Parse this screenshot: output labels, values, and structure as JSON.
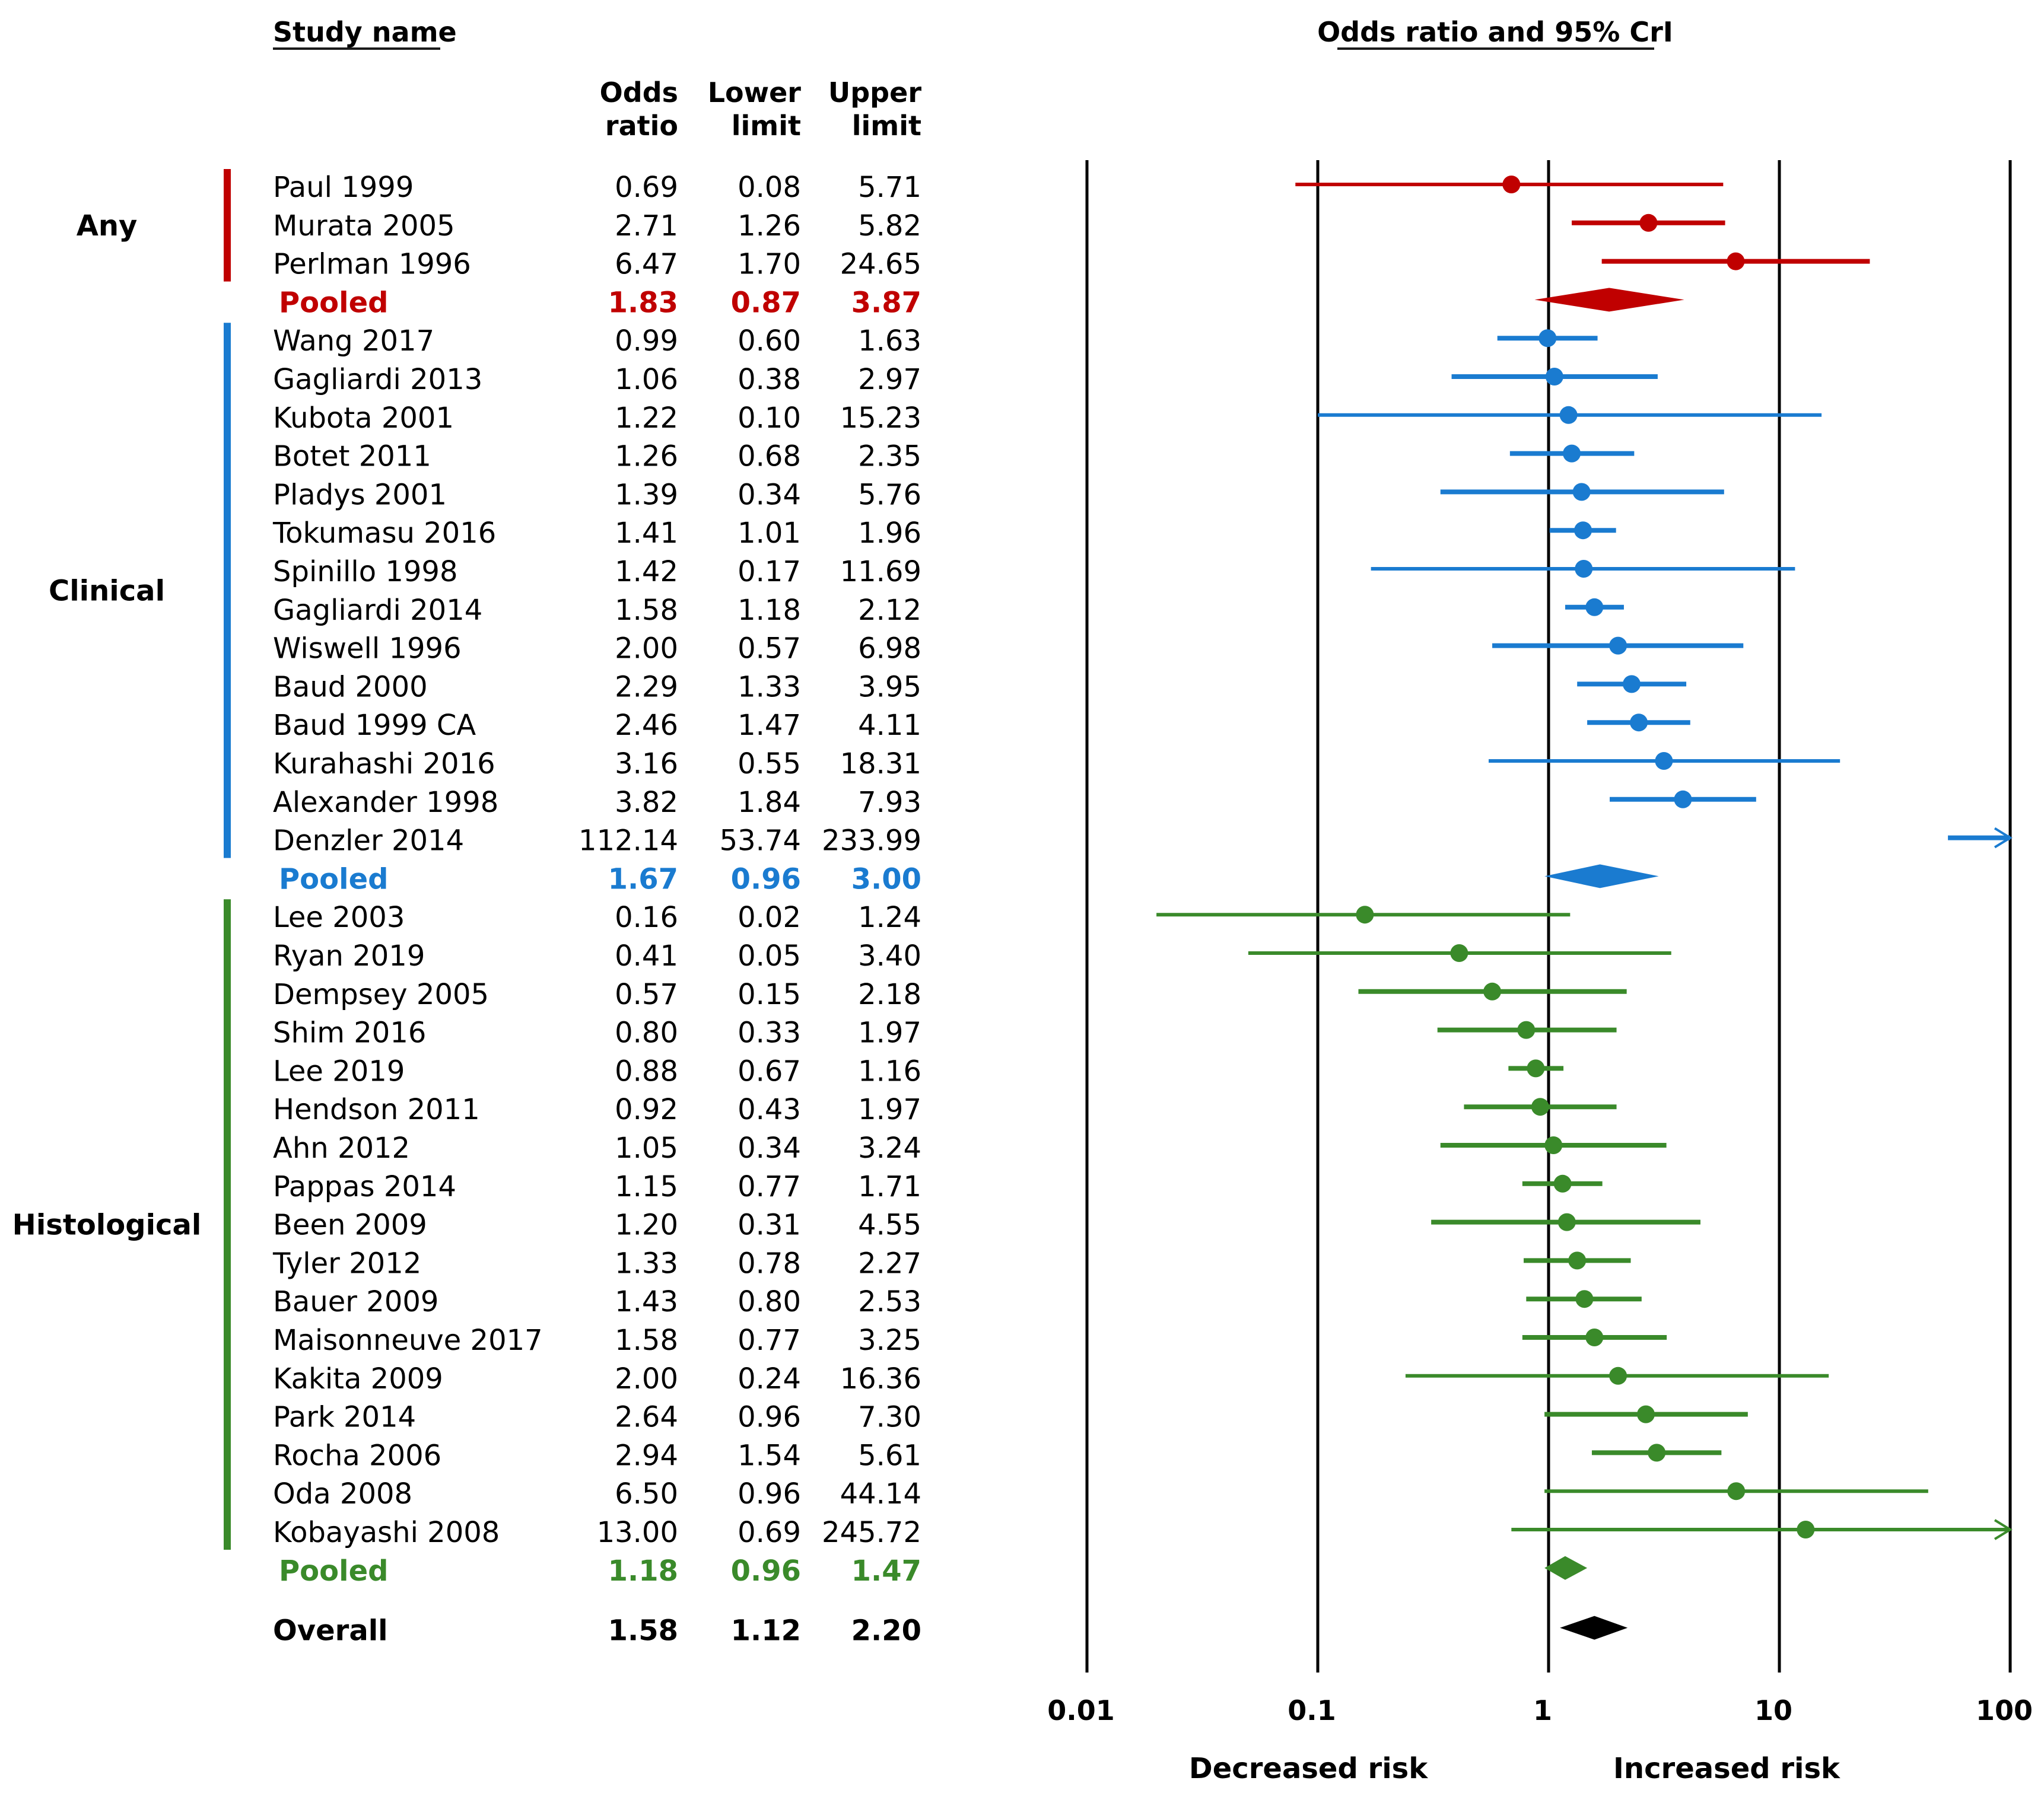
{
  "chart_data": {
    "type": "forest",
    "headers": {
      "study_name": "Study name",
      "odds_ratio_line1": "Odds",
      "odds_ratio_line2": "ratio",
      "lower_line1": "Lower",
      "lower_line2": "limit",
      "upper_line1": "Upper",
      "upper_line2": "limit",
      "plot_title": "Odds ratio and 95% CrI"
    },
    "x_axis": {
      "scale": "log",
      "range": [
        0.01,
        100
      ],
      "ticks": [
        0.01,
        0.1,
        1,
        10,
        100
      ],
      "tick_labels": [
        "0.01",
        "0.1",
        "1",
        "10",
        "100"
      ],
      "left_label": "Decreased risk",
      "right_label": "Increased risk"
    },
    "groups": [
      {
        "name": "Any",
        "color": "#c00000",
        "studies": [
          {
            "name": "Paul 1999",
            "or": "0.69",
            "lower": "0.08",
            "upper": "5.71"
          },
          {
            "name": "Murata 2005",
            "or": "2.71",
            "lower": "1.26",
            "upper": "5.82"
          },
          {
            "name": "Perlman 1996",
            "or": "6.47",
            "lower": "1.70",
            "upper": "24.65"
          }
        ],
        "pooled": {
          "name": "Pooled",
          "or": "1.83",
          "lower": "0.87",
          "upper": "3.87"
        }
      },
      {
        "name": "Clinical",
        "color": "#1a7bd0",
        "studies": [
          {
            "name": "Wang 2017",
            "or": "0.99",
            "lower": "0.60",
            "upper": "1.63"
          },
          {
            "name": "Gagliardi 2013",
            "or": "1.06",
            "lower": "0.38",
            "upper": "2.97"
          },
          {
            "name": "Kubota 2001",
            "or": "1.22",
            "lower": "0.10",
            "upper": "15.23"
          },
          {
            "name": "Botet 2011",
            "or": "1.26",
            "lower": "0.68",
            "upper": "2.35"
          },
          {
            "name": "Pladys 2001",
            "or": "1.39",
            "lower": "0.34",
            "upper": "5.76"
          },
          {
            "name": "Tokumasu 2016",
            "or": "1.41",
            "lower": "1.01",
            "upper": "1.96"
          },
          {
            "name": "Spinillo 1998",
            "or": "1.42",
            "lower": "0.17",
            "upper": "11.69"
          },
          {
            "name": "Gagliardi 2014",
            "or": "1.58",
            "lower": "1.18",
            "upper": "2.12"
          },
          {
            "name": "Wiswell 1996",
            "or": "2.00",
            "lower": "0.57",
            "upper": "6.98"
          },
          {
            "name": "Baud 2000",
            "or": "2.29",
            "lower": "1.33",
            "upper": "3.95"
          },
          {
            "name": "Baud 1999 CA",
            "or": "2.46",
            "lower": "1.47",
            "upper": "4.11"
          },
          {
            "name": "Kurahashi 2016",
            "or": "3.16",
            "lower": "0.55",
            "upper": "18.31"
          },
          {
            "name": "Alexander 1998",
            "or": "3.82",
            "lower": "1.84",
            "upper": "7.93"
          },
          {
            "name": "Denzler 2014",
            "or": "112.14",
            "lower": "53.74",
            "upper": "233.99"
          }
        ],
        "pooled": {
          "name": "Pooled",
          "or": "1.67",
          "lower": "0.96",
          "upper": "3.00"
        }
      },
      {
        "name": "Histological",
        "color": "#3a8a2a",
        "studies": [
          {
            "name": "Lee 2003",
            "or": "0.16",
            "lower": "0.02",
            "upper": "1.24"
          },
          {
            "name": "Ryan 2019",
            "or": "0.41",
            "lower": "0.05",
            "upper": "3.40"
          },
          {
            "name": "Dempsey 2005",
            "or": "0.57",
            "lower": "0.15",
            "upper": "2.18"
          },
          {
            "name": "Shim 2016",
            "or": "0.80",
            "lower": "0.33",
            "upper": "1.97"
          },
          {
            "name": "Lee 2019",
            "or": "0.88",
            "lower": "0.67",
            "upper": "1.16"
          },
          {
            "name": "Hendson 2011",
            "or": "0.92",
            "lower": "0.43",
            "upper": "1.97"
          },
          {
            "name": "Ahn 2012",
            "or": "1.05",
            "lower": "0.34",
            "upper": "3.24"
          },
          {
            "name": "Pappas 2014",
            "or": "1.15",
            "lower": "0.77",
            "upper": "1.71"
          },
          {
            "name": "Been 2009",
            "or": "1.20",
            "lower": "0.31",
            "upper": "4.55"
          },
          {
            "name": "Tyler 2012",
            "or": "1.33",
            "lower": "0.78",
            "upper": "2.27"
          },
          {
            "name": "Bauer 2009",
            "or": "1.43",
            "lower": "0.80",
            "upper": "2.53"
          },
          {
            "name": "Maisonneuve 2017",
            "or": "1.58",
            "lower": "0.77",
            "upper": "3.25"
          },
          {
            "name": "Kakita 2009",
            "or": "2.00",
            "lower": "0.24",
            "upper": "16.36"
          },
          {
            "name": "Park 2014",
            "or": "2.64",
            "lower": "0.96",
            "upper": "7.30"
          },
          {
            "name": "Rocha 2006",
            "or": "2.94",
            "lower": "1.54",
            "upper": "5.61"
          },
          {
            "name": "Oda 2008",
            "or": "6.50",
            "lower": "0.96",
            "upper": "44.14"
          },
          {
            "name": "Kobayashi 2008",
            "or": "13.00",
            "lower": "0.69",
            "upper": "245.72"
          }
        ],
        "pooled": {
          "name": "Pooled",
          "or": "1.18",
          "lower": "0.96",
          "upper": "1.47"
        }
      }
    ],
    "overall": {
      "name": "Overall",
      "or": "1.58",
      "lower": "1.12",
      "upper": "2.20",
      "color": "#000000"
    }
  }
}
